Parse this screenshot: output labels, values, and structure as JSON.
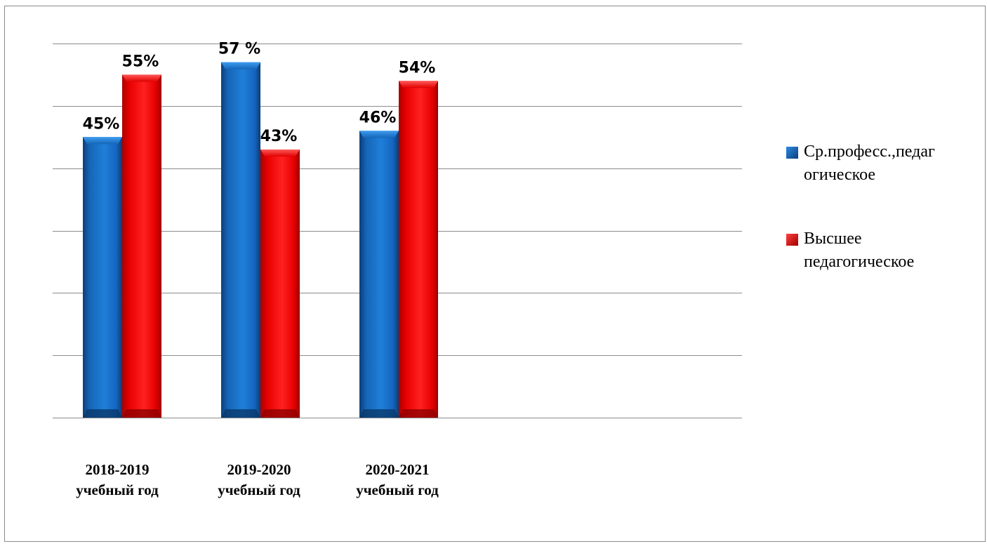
{
  "chart_data": {
    "type": "bar",
    "categories": [
      [
        "2018-2019",
        "учебный год"
      ],
      [
        "2019-2020",
        "учебный год"
      ],
      [
        "2020-2021",
        "учебный год"
      ]
    ],
    "series": [
      {
        "name": "Ср.професс.,педаг огическое",
        "name_lines": [
          "Ср.професс.,педаг",
          "огическое"
        ],
        "values": [
          45,
          57,
          46
        ],
        "labels": [
          "45%",
          "57 %",
          "46%"
        ],
        "color": "#1565c0"
      },
      {
        "name": "Высшее педагогическое",
        "name_lines": [
          "Высшее",
          "педагогическое"
        ],
        "values": [
          55,
          43,
          54
        ],
        "labels": [
          "55%",
          "43%",
          "54%"
        ],
        "color": "#ee1111"
      }
    ],
    "ylim": [
      0,
      60
    ],
    "gridlines": true,
    "legend_position": "right",
    "title": "",
    "xlabel": "",
    "ylabel": ""
  }
}
